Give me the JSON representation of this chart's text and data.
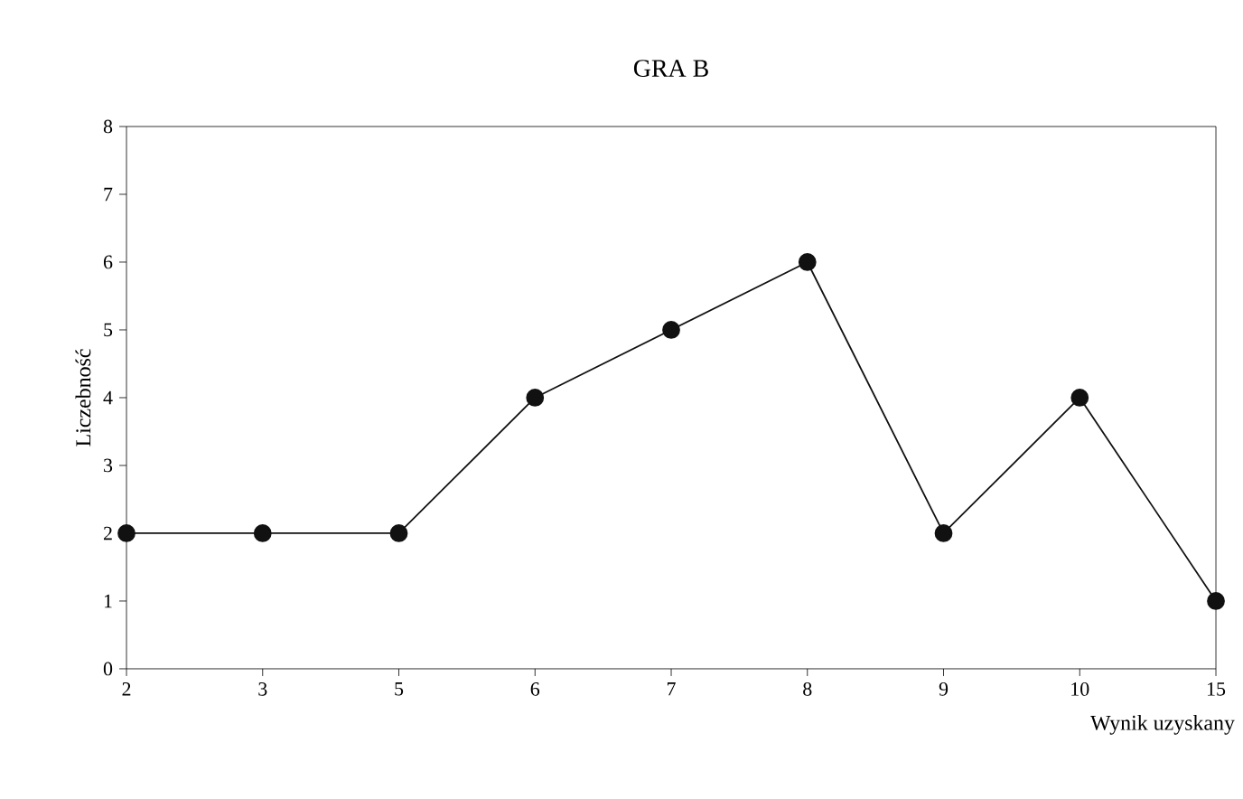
{
  "chart_data": {
    "type": "line",
    "title": "GRA B",
    "xlabel": "Wynik uzyskany",
    "ylabel": "Liczebność",
    "categories": [
      "2",
      "3",
      "5",
      "6",
      "7",
      "8",
      "9",
      "10",
      "15"
    ],
    "values": [
      2,
      2,
      2,
      4,
      5,
      6,
      2,
      4,
      1
    ],
    "color": "#111111",
    "marker": "circle",
    "ylim": [
      0,
      8
    ],
    "yticks": [
      0,
      1,
      2,
      3,
      4,
      5,
      6,
      7,
      8
    ]
  }
}
